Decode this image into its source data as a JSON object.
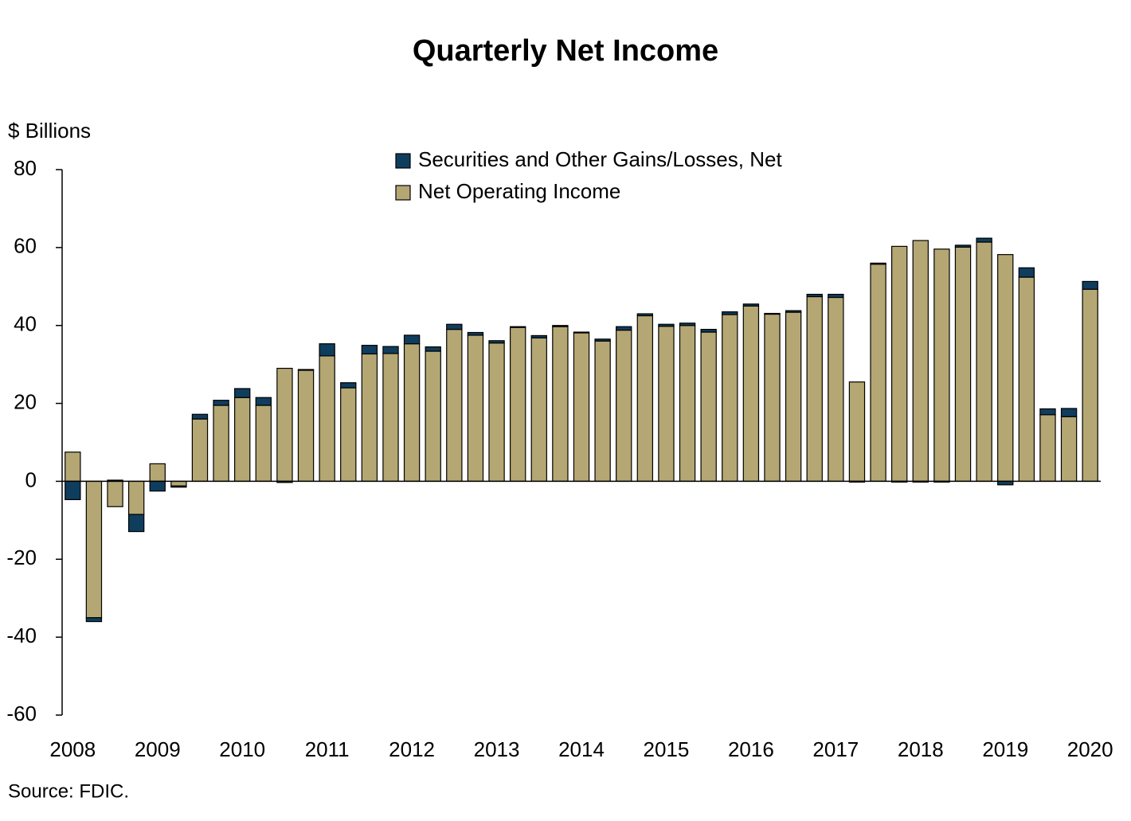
{
  "chart_data": {
    "type": "stacked_bar",
    "title": "Quarterly Net Income",
    "y_label": "$ Billions",
    "source": "Source: FDIC.",
    "categories": [
      "2008",
      null,
      null,
      null,
      "2009",
      null,
      null,
      null,
      "2010",
      null,
      null,
      null,
      "2011",
      null,
      null,
      null,
      "2012",
      null,
      null,
      null,
      "2013",
      null,
      null,
      null,
      "2014",
      null,
      null,
      null,
      "2015",
      null,
      null,
      null,
      "2016",
      null,
      null,
      null,
      "2017",
      null,
      null,
      null,
      "2018",
      null,
      null,
      null,
      "2019",
      null,
      null,
      null,
      "2020"
    ],
    "series": [
      {
        "name": "Securities and Other Gains/Losses, Net",
        "color": "#0f3d5e",
        "values": [
          -4.7,
          -1.0,
          0.3,
          -4.4,
          -2.5,
          -0.3,
          1.2,
          1.3,
          2.3,
          2.0,
          -0.3,
          0.2,
          3.1,
          1.3,
          2.2,
          1.8,
          2.2,
          1.1,
          1.3,
          0.7,
          0.6,
          0.2,
          0.6,
          0.3,
          0.2,
          0.5,
          0.9,
          0.5,
          0.5,
          0.6,
          0.7,
          0.7,
          0.5,
          0.2,
          0.4,
          0.6,
          0.8,
          -0.2,
          0.3,
          -0.2,
          -0.2,
          -0.2,
          0.5,
          1.0,
          -0.9,
          2.4,
          1.5,
          2.1,
          2.0
        ]
      },
      {
        "name": "Net Operating Income",
        "color": "#b5a773",
        "values": [
          7.5,
          -35.0,
          -6.5,
          -8.5,
          4.5,
          -1.2,
          16.0,
          19.5,
          21.5,
          19.5,
          29.0,
          28.5,
          32.2,
          24.0,
          32.7,
          32.8,
          35.3,
          33.4,
          39.0,
          37.5,
          35.5,
          39.5,
          36.8,
          39.7,
          38.1,
          36.0,
          38.8,
          42.5,
          39.8,
          40.0,
          38.3,
          42.8,
          45.0,
          42.9,
          43.4,
          47.4,
          47.2,
          25.5,
          55.7,
          60.3,
          61.8,
          59.6,
          60.1,
          61.4,
          58.2,
          52.4,
          17.1,
          16.6,
          49.3
        ]
      }
    ],
    "ylim": [
      -60,
      80
    ],
    "yticks": [
      -60,
      -40,
      -20,
      0,
      20,
      40,
      60,
      80
    ],
    "grid": false
  }
}
